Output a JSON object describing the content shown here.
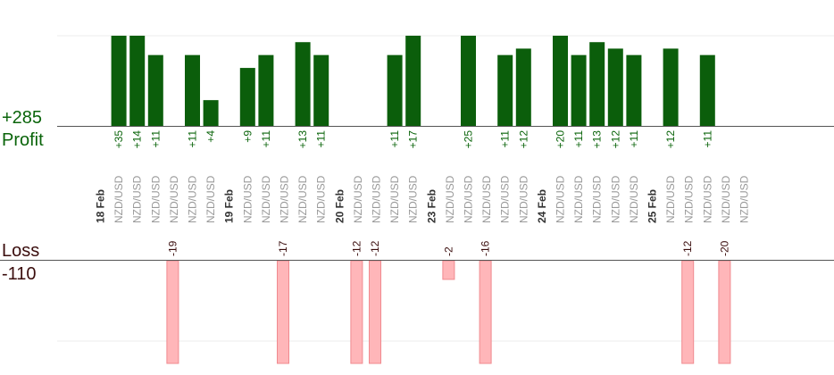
{
  "summary": {
    "profit_total": "+285",
    "profit_label": "Profit",
    "loss_label": "Loss",
    "loss_total": "-110"
  },
  "colors": {
    "profit_bar": "#0b5e0b",
    "profit_text": "#0a640a",
    "loss_bar": "#ffb6b9",
    "loss_bar_border": "#f08a8f",
    "loss_text": "#3a0d0d",
    "date_text": "#333333",
    "pair_text": "#999999"
  },
  "chart_data": {
    "type": "bar",
    "ylim_profit": [
      0,
      14
    ],
    "ylim_loss": [
      0,
      11
    ],
    "columns": [
      {
        "kind": "date",
        "label": "18 Feb"
      },
      {
        "kind": "trade",
        "label": "NZD/USD",
        "profit": 35
      },
      {
        "kind": "trade",
        "label": "NZD/USD",
        "profit": 14
      },
      {
        "kind": "trade",
        "label": "NZD/USD",
        "profit": 11
      },
      {
        "kind": "trade",
        "label": "NZD/USD",
        "loss": -19
      },
      {
        "kind": "trade",
        "label": "NZD/USD",
        "profit": 11
      },
      {
        "kind": "trade",
        "label": "NZD/USD",
        "profit": 4
      },
      {
        "kind": "date",
        "label": "19 Feb"
      },
      {
        "kind": "trade",
        "label": "NZD/USD",
        "profit": 9
      },
      {
        "kind": "trade",
        "label": "NZD/USD",
        "profit": 11
      },
      {
        "kind": "trade",
        "label": "NZD/USD",
        "loss": -17
      },
      {
        "kind": "trade",
        "label": "NZD/USD",
        "profit": 13
      },
      {
        "kind": "trade",
        "label": "NZD/USD",
        "profit": 11
      },
      {
        "kind": "date",
        "label": "20 Feb"
      },
      {
        "kind": "trade",
        "label": "NZD/USD",
        "loss": -12
      },
      {
        "kind": "trade",
        "label": "NZD/USD",
        "loss": -12
      },
      {
        "kind": "trade",
        "label": "NZD/USD",
        "profit": 11
      },
      {
        "kind": "trade",
        "label": "NZD/USD",
        "profit": 17
      },
      {
        "kind": "date",
        "label": "23 Feb"
      },
      {
        "kind": "trade",
        "label": "NZD/USD",
        "loss": -2
      },
      {
        "kind": "trade",
        "label": "NZD/USD",
        "profit": 25
      },
      {
        "kind": "trade",
        "label": "NZD/USD",
        "loss": -16
      },
      {
        "kind": "trade",
        "label": "NZD/USD",
        "profit": 11
      },
      {
        "kind": "trade",
        "label": "NZD/USD",
        "profit": 12
      },
      {
        "kind": "date",
        "label": "24 Feb"
      },
      {
        "kind": "trade",
        "label": "NZD/USD",
        "profit": 20
      },
      {
        "kind": "trade",
        "label": "NZD/USD",
        "profit": 11
      },
      {
        "kind": "trade",
        "label": "NZD/USD",
        "profit": 13
      },
      {
        "kind": "trade",
        "label": "NZD/USD",
        "profit": 12
      },
      {
        "kind": "trade",
        "label": "NZD/USD",
        "profit": 11
      },
      {
        "kind": "date",
        "label": "25 Feb"
      },
      {
        "kind": "trade",
        "label": "NZD/USD",
        "profit": 12
      },
      {
        "kind": "trade",
        "label": "NZD/USD",
        "loss": -12
      },
      {
        "kind": "trade",
        "label": "NZD/USD",
        "profit": 11
      },
      {
        "kind": "trade",
        "label": "NZD/USD",
        "loss": -20
      },
      {
        "kind": "trade",
        "label": "NZD/USD"
      }
    ]
  }
}
